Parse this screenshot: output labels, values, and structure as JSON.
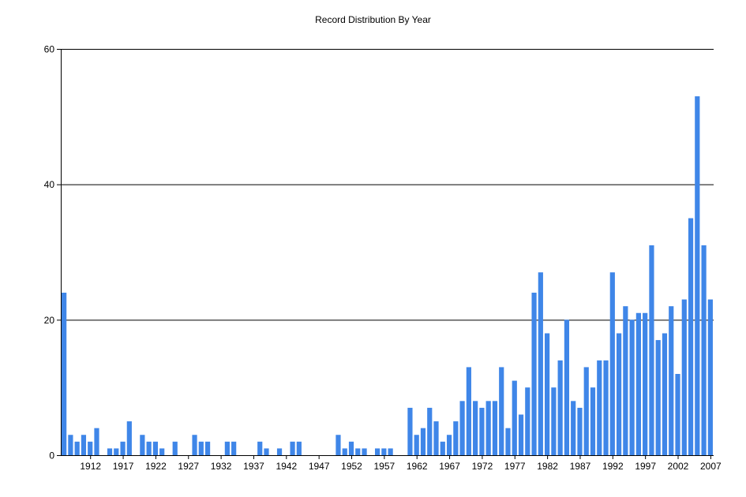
{
  "chart_data": {
    "type": "bar",
    "title": "Record Distribution By Year",
    "xlabel": "",
    "ylabel": "",
    "ylim": [
      0,
      60
    ],
    "yticks": [
      0,
      20,
      40,
      60
    ],
    "xticks": [
      1912,
      1917,
      1922,
      1927,
      1932,
      1937,
      1942,
      1947,
      1952,
      1957,
      1962,
      1967,
      1972,
      1977,
      1982,
      1987,
      1992,
      1997,
      2002,
      2007
    ],
    "grid": "horizontal",
    "bar_color": "#3f86e8",
    "x": [
      1908,
      1909,
      1910,
      1911,
      1912,
      1913,
      1914,
      1915,
      1916,
      1917,
      1918,
      1919,
      1920,
      1921,
      1922,
      1923,
      1924,
      1925,
      1926,
      1927,
      1928,
      1929,
      1930,
      1931,
      1932,
      1933,
      1934,
      1935,
      1936,
      1937,
      1938,
      1939,
      1940,
      1941,
      1942,
      1943,
      1944,
      1945,
      1946,
      1947,
      1948,
      1949,
      1950,
      1951,
      1952,
      1953,
      1954,
      1955,
      1956,
      1957,
      1958,
      1959,
      1960,
      1961,
      1962,
      1963,
      1964,
      1965,
      1966,
      1967,
      1968,
      1969,
      1970,
      1971,
      1972,
      1973,
      1974,
      1975,
      1976,
      1977,
      1978,
      1979,
      1980,
      1981,
      1982,
      1983,
      1984,
      1985,
      1986,
      1987,
      1988,
      1989,
      1990,
      1991,
      1992,
      1993,
      1994,
      1995,
      1996,
      1997,
      1998,
      1999,
      2000,
      2001,
      2002,
      2003,
      2004,
      2005,
      2006,
      2007
    ],
    "values": [
      24,
      3,
      2,
      3,
      2,
      4,
      0,
      1,
      1,
      2,
      5,
      0,
      3,
      2,
      2,
      1,
      0,
      2,
      0,
      0,
      3,
      2,
      2,
      0,
      0,
      2,
      2,
      0,
      0,
      0,
      2,
      1,
      0,
      1,
      0,
      2,
      2,
      0,
      0,
      0,
      0,
      0,
      3,
      1,
      2,
      1,
      1,
      0,
      1,
      1,
      1,
      0,
      0,
      7,
      3,
      4,
      7,
      5,
      2,
      3,
      5,
      8,
      13,
      8,
      7,
      8,
      8,
      13,
      4,
      11,
      6,
      10,
      24,
      27,
      18,
      10,
      14,
      20,
      8,
      7,
      13,
      10,
      14,
      14,
      27,
      18,
      22,
      20,
      21,
      21,
      31,
      17,
      18,
      22,
      12,
      23,
      35,
      53,
      31,
      23
    ]
  }
}
